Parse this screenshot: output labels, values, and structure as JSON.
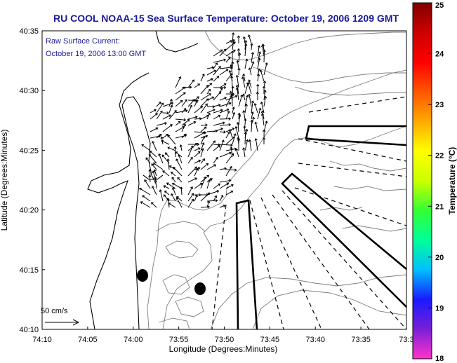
{
  "chart_data": {
    "type": "vector-field",
    "title": "RU COOL  NOAA-15  Sea Surface Temperature:  October 19, 2006 1209 GMT",
    "subtitle_lines": [
      "Raw Surface Current:",
      "October 19, 2006 13:00 GMT"
    ],
    "xlabel": "Longitude (Degrees:Minutes)",
    "ylabel": "Latitude (Degrees:Minutes)",
    "x_ticks": [
      "74:10",
      "74:05",
      "74:00",
      "73:55",
      "73:50",
      "73:45",
      "73:40",
      "73:35",
      "73:3"
    ],
    "y_ticks": [
      "40:35",
      "40:30",
      "40:25",
      "40:20",
      "40:15",
      "40:10"
    ],
    "xlim_minutes_west": [
      70,
      30
    ],
    "ylim_minutes_north": [
      10,
      35
    ],
    "scale_label": "50 cm/s",
    "colorbar": {
      "label": "Temperature (°C)",
      "min": 18,
      "max": 25,
      "ticks": [
        "25",
        "24",
        "23",
        "22",
        "21",
        "20",
        "19",
        "18"
      ],
      "colors": [
        "#ff33cc",
        "#7a1fd6",
        "#1a1aff",
        "#00bfff",
        "#00ff99",
        "#33ff33",
        "#ccff00",
        "#ffff00",
        "#ffaa00",
        "#ff5500",
        "#ff0000",
        "#cc0000",
        "#800000"
      ]
    },
    "markers": [
      {
        "name": "station",
        "lon_min_w": 58.8,
        "lat_min_n": 14.7
      },
      {
        "name": "station",
        "lon_min_w": 52.2,
        "lat_min_n": 13.5
      }
    ]
  }
}
